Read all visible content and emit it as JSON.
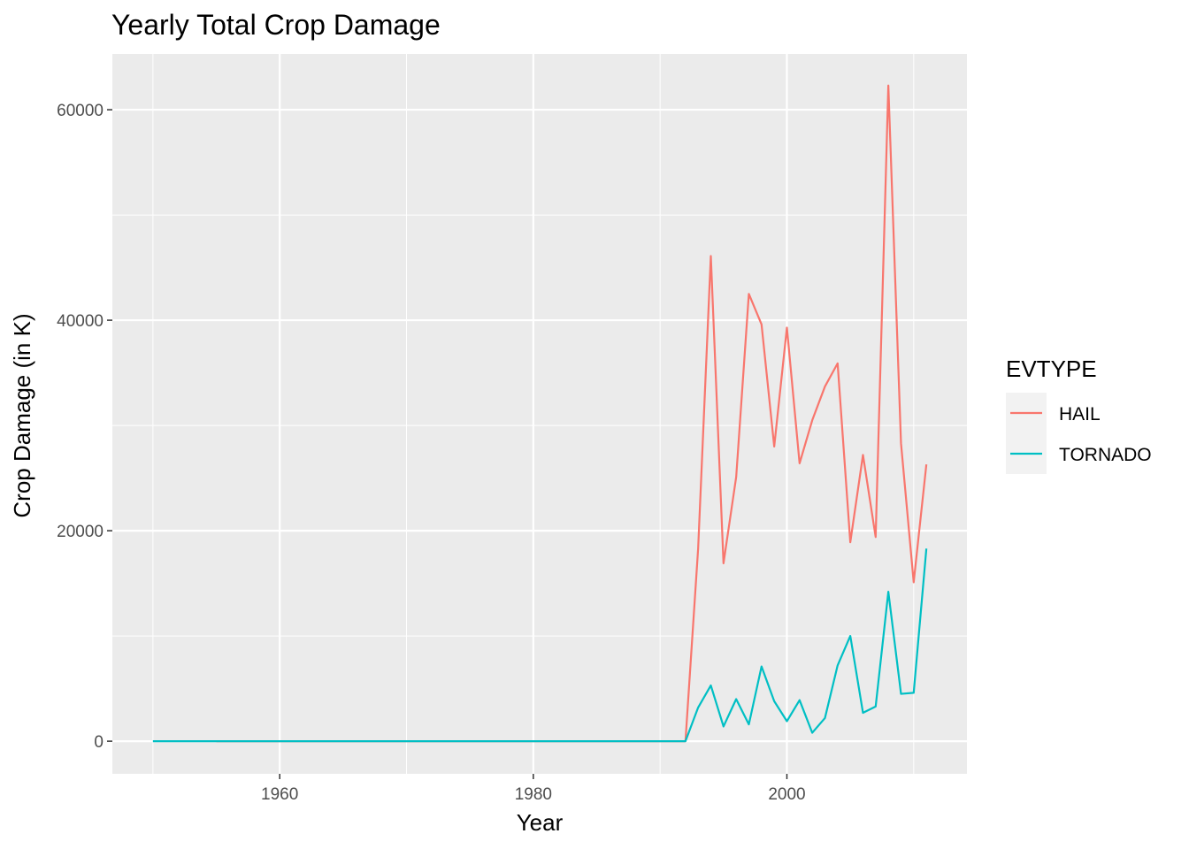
{
  "chart_data": {
    "type": "line",
    "title": "Yearly Total Crop Damage",
    "xlabel": "Year",
    "ylabel": "Crop Damage (in K)",
    "xlim": [
      1946.8,
      2014.2
    ],
    "ylim": [
      -3100,
      65300
    ],
    "x_ticks": [
      1960,
      1980,
      2000
    ],
    "y_ticks": [
      0,
      20000,
      40000,
      60000
    ],
    "x_tick_labels": [
      "1960",
      "1980",
      "2000"
    ],
    "y_tick_labels": [
      "0",
      "20000",
      "40000",
      "60000"
    ],
    "grid": true,
    "legend": {
      "title": "EVTYPE",
      "position": "right"
    },
    "series": [
      {
        "name": "HAIL",
        "color": "#F8766D",
        "x": [
          1955,
          1956,
          1957,
          1958,
          1959,
          1960,
          1961,
          1962,
          1963,
          1964,
          1965,
          1966,
          1967,
          1968,
          1969,
          1970,
          1971,
          1972,
          1973,
          1974,
          1975,
          1976,
          1977,
          1978,
          1979,
          1980,
          1981,
          1982,
          1983,
          1984,
          1985,
          1986,
          1987,
          1988,
          1989,
          1990,
          1991,
          1992,
          1993,
          1994,
          1995,
          1996,
          1997,
          1998,
          1999,
          2000,
          2001,
          2002,
          2003,
          2004,
          2005,
          2006,
          2007,
          2008,
          2009,
          2010,
          2011
        ],
        "y": [
          0,
          0,
          0,
          0,
          0,
          0,
          0,
          0,
          0,
          0,
          0,
          0,
          0,
          0,
          0,
          0,
          0,
          0,
          0,
          0,
          0,
          0,
          0,
          0,
          0,
          0,
          0,
          0,
          0,
          0,
          0,
          0,
          0,
          0,
          0,
          0,
          0,
          0,
          18300,
          46100,
          16900,
          25100,
          42500,
          39600,
          28000,
          39300,
          26400,
          30500,
          33700,
          35900,
          18900,
          27200,
          19400,
          62300,
          28300,
          15100,
          26300
        ]
      },
      {
        "name": "TORNADO",
        "color": "#00BFC4",
        "x": [
          1950,
          1951,
          1952,
          1953,
          1954,
          1955,
          1956,
          1957,
          1958,
          1959,
          1960,
          1961,
          1962,
          1963,
          1964,
          1965,
          1966,
          1967,
          1968,
          1969,
          1970,
          1971,
          1972,
          1973,
          1974,
          1975,
          1976,
          1977,
          1978,
          1979,
          1980,
          1981,
          1982,
          1983,
          1984,
          1985,
          1986,
          1987,
          1988,
          1989,
          1990,
          1991,
          1992,
          1993,
          1994,
          1995,
          1996,
          1997,
          1998,
          1999,
          2000,
          2001,
          2002,
          2003,
          2004,
          2005,
          2006,
          2007,
          2008,
          2009,
          2010,
          2011
        ],
        "y": [
          0,
          0,
          0,
          0,
          0,
          0,
          0,
          0,
          0,
          0,
          0,
          0,
          0,
          0,
          0,
          0,
          0,
          0,
          0,
          0,
          0,
          0,
          0,
          0,
          0,
          0,
          0,
          0,
          0,
          0,
          0,
          0,
          0,
          0,
          0,
          0,
          0,
          0,
          0,
          0,
          0,
          0,
          0,
          3200,
          5300,
          1400,
          4000,
          1600,
          7100,
          3800,
          1900,
          3900,
          800,
          2200,
          7200,
          10000,
          2700,
          3300,
          14200,
          4500,
          4600,
          18300
        ]
      }
    ]
  }
}
